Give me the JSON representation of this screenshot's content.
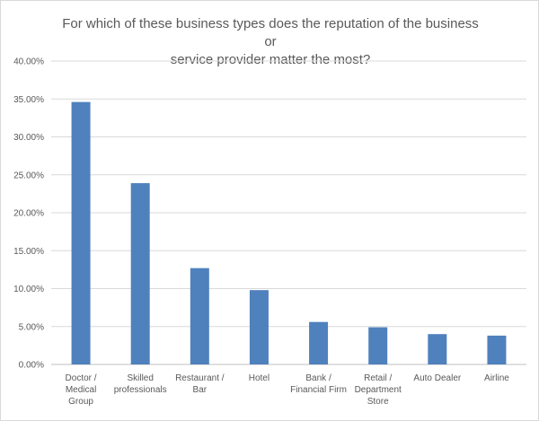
{
  "chart_data": {
    "type": "bar",
    "title_lines": [
      "For which of these business types does the reputation of the business or",
      "service provider matter the most?"
    ],
    "categories": [
      [
        "Doctor /",
        "Medical",
        "Group"
      ],
      [
        "Skilled",
        "professionals"
      ],
      [
        "Restaurant /",
        "Bar"
      ],
      [
        "Hotel"
      ],
      [
        "Bank /",
        "Financial Firm"
      ],
      [
        "Retail /",
        "Department",
        "Store"
      ],
      [
        "Auto Dealer"
      ],
      [
        "Airline"
      ]
    ],
    "values": [
      34.6,
      23.9,
      12.7,
      9.8,
      5.6,
      4.9,
      4.0,
      3.8
    ],
    "ylim": [
      0,
      40
    ],
    "yticks": [
      "0.00%",
      "5.00%",
      "10.00%",
      "15.00%",
      "20.00%",
      "25.00%",
      "30.00%",
      "35.00%",
      "40.00%"
    ],
    "grid": true,
    "bar_color": "#4f81bd",
    "grid_color": "#d9d9d9",
    "axis_color": "#bfbfbf"
  }
}
